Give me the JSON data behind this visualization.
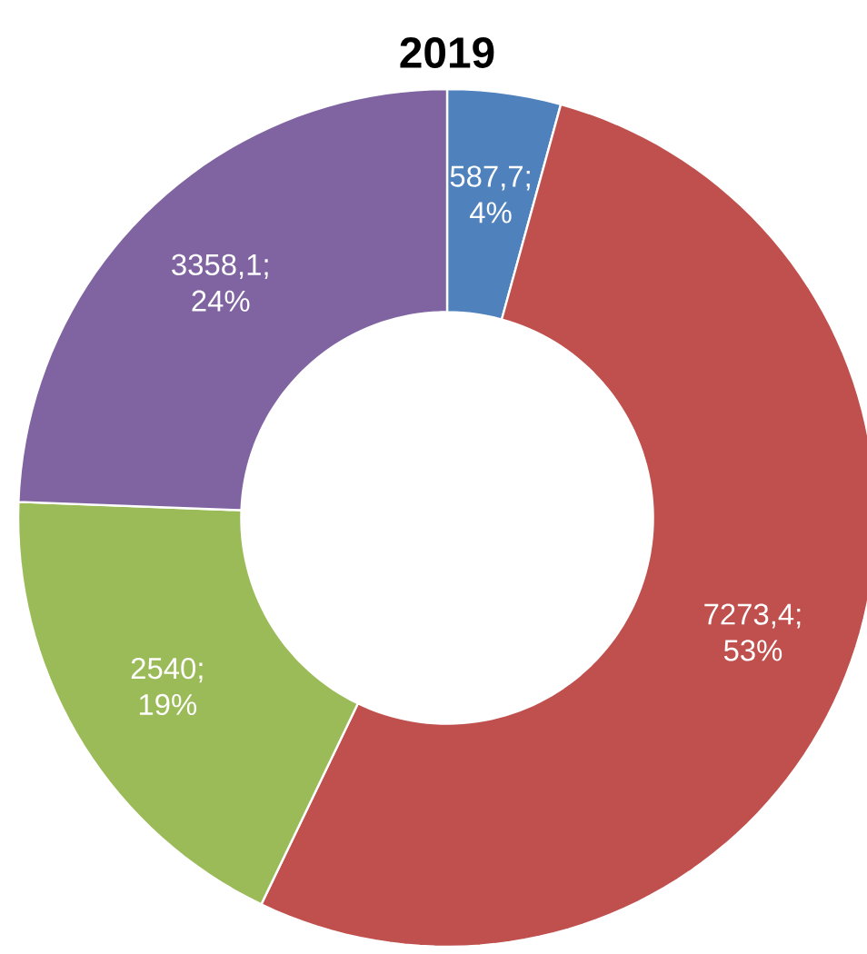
{
  "chart_data": {
    "type": "donut",
    "title": "2019",
    "categories": [
      null,
      null,
      null,
      null
    ],
    "values": [
      587.7,
      7273.4,
      2540,
      3358.1
    ],
    "colors": [
      "#4f81bd",
      "#c0504d",
      "#9bbb59",
      "#8064a2"
    ],
    "value_labels": [
      "587,7; 4%",
      "7273,4; 53%",
      "2540; 19%",
      "3358,1; 24%"
    ]
  }
}
